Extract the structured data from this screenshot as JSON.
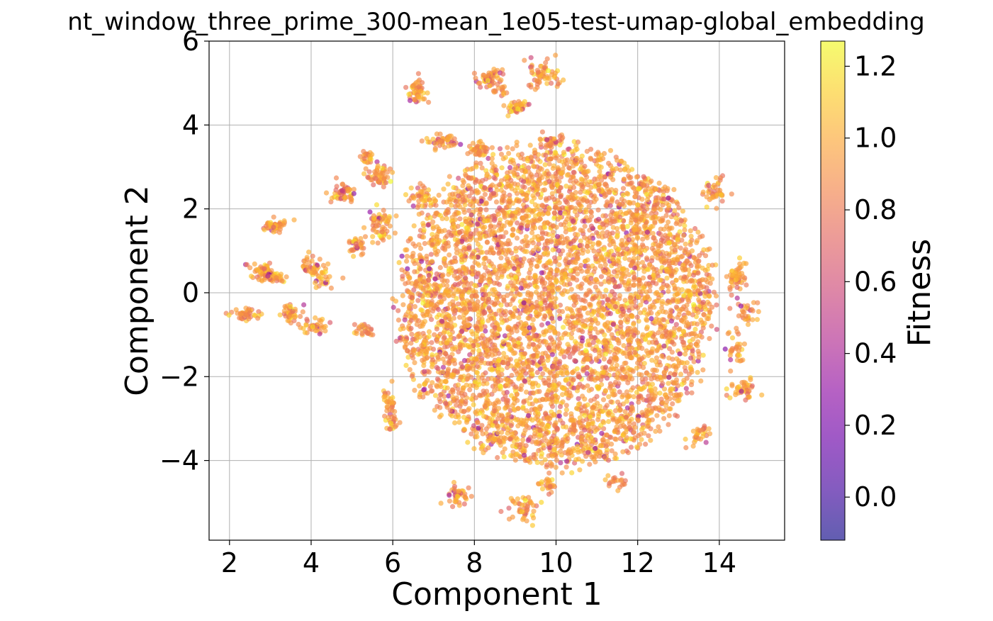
{
  "chart_data": {
    "type": "scatter",
    "title": "nt_window_three_prime_300-mean_1e05-test-umap-global_embedding",
    "xlabel": "Component 1",
    "ylabel": "Component 2",
    "xlim": [
      1.5,
      15.6
    ],
    "ylim": [
      -5.9,
      6.0
    ],
    "xticks": [
      2,
      4,
      6,
      8,
      10,
      12,
      14
    ],
    "yticks": [
      -4,
      -2,
      0,
      2,
      4,
      6
    ],
    "xtick_labels": [
      "2",
      "4",
      "6",
      "8",
      "10",
      "12",
      "14"
    ],
    "ytick_labels": [
      "−4",
      "−2",
      "0",
      "2",
      "4",
      "6"
    ],
    "grid": true,
    "colormap": "plasma",
    "point_alpha": 0.65,
    "colorbar": {
      "label": "Fitness",
      "range": [
        -0.12,
        1.27
      ],
      "ticks": [
        0.0,
        0.2,
        0.4,
        0.6,
        0.8,
        1.0,
        1.2
      ],
      "tick_labels": [
        "0.0",
        "0.2",
        "0.4",
        "0.6",
        "0.8",
        "1.0",
        "1.2"
      ]
    },
    "main_cloud": {
      "cx": 10.0,
      "cy": -0.3,
      "rx": 3.9,
      "ry": 3.9,
      "n": 5200,
      "fitness_mean": 0.93,
      "fitness_sd": 0.12
    },
    "clusters": [
      {
        "cx": 2.4,
        "cy": -0.5,
        "sx": 0.2,
        "sy": 0.07,
        "n": 40
      },
      {
        "cx": 2.8,
        "cy": 0.5,
        "sx": 0.15,
        "sy": 0.1,
        "n": 50
      },
      {
        "cx": 3.1,
        "cy": 0.35,
        "sx": 0.12,
        "sy": 0.08,
        "n": 30
      },
      {
        "cx": 3.1,
        "cy": 1.6,
        "sx": 0.15,
        "sy": 0.08,
        "n": 50
      },
      {
        "cx": 3.5,
        "cy": -0.5,
        "sx": 0.12,
        "sy": 0.15,
        "n": 40
      },
      {
        "cx": 4.0,
        "cy": 0.6,
        "sx": 0.2,
        "sy": 0.12,
        "n": 40
      },
      {
        "cx": 4.1,
        "cy": -0.8,
        "sx": 0.15,
        "sy": 0.1,
        "n": 35
      },
      {
        "cx": 4.3,
        "cy": 0.3,
        "sx": 0.15,
        "sy": 0.12,
        "n": 20
      },
      {
        "cx": 4.8,
        "cy": 2.4,
        "sx": 0.15,
        "sy": 0.12,
        "n": 50
      },
      {
        "cx": 5.1,
        "cy": 1.1,
        "sx": 0.1,
        "sy": 0.1,
        "n": 30
      },
      {
        "cx": 5.3,
        "cy": -0.9,
        "sx": 0.1,
        "sy": 0.1,
        "n": 25
      },
      {
        "cx": 5.4,
        "cy": 3.2,
        "sx": 0.1,
        "sy": 0.1,
        "n": 25
      },
      {
        "cx": 5.7,
        "cy": 2.8,
        "sx": 0.15,
        "sy": 0.12,
        "n": 50
      },
      {
        "cx": 5.7,
        "cy": 1.6,
        "sx": 0.15,
        "sy": 0.2,
        "n": 60
      },
      {
        "cx": 5.9,
        "cy": -2.6,
        "sx": 0.1,
        "sy": 0.15,
        "n": 30
      },
      {
        "cx": 6.0,
        "cy": -3.1,
        "sx": 0.1,
        "sy": 0.1,
        "n": 20
      },
      {
        "cx": 6.6,
        "cy": 4.8,
        "sx": 0.1,
        "sy": 0.2,
        "n": 50
      },
      {
        "cx": 6.7,
        "cy": 2.3,
        "sx": 0.15,
        "sy": 0.12,
        "n": 40
      },
      {
        "cx": 7.2,
        "cy": 3.6,
        "sx": 0.2,
        "sy": 0.08,
        "n": 45
      },
      {
        "cx": 7.6,
        "cy": -4.8,
        "sx": 0.15,
        "sy": 0.12,
        "n": 40
      },
      {
        "cx": 8.1,
        "cy": 3.4,
        "sx": 0.15,
        "sy": 0.1,
        "n": 40
      },
      {
        "cx": 8.4,
        "cy": 5.1,
        "sx": 0.15,
        "sy": 0.12,
        "n": 50
      },
      {
        "cx": 8.6,
        "cy": 4.85,
        "sx": 0.1,
        "sy": 0.08,
        "n": 15
      },
      {
        "cx": 9.0,
        "cy": 4.4,
        "sx": 0.12,
        "sy": 0.1,
        "n": 40
      },
      {
        "cx": 9.2,
        "cy": -5.1,
        "sx": 0.15,
        "sy": 0.15,
        "n": 45
      },
      {
        "cx": 9.7,
        "cy": 5.2,
        "sx": 0.2,
        "sy": 0.18,
        "n": 60
      },
      {
        "cx": 9.8,
        "cy": -4.6,
        "sx": 0.15,
        "sy": 0.1,
        "n": 25
      },
      {
        "cx": 9.9,
        "cy": 3.6,
        "sx": 0.15,
        "sy": 0.08,
        "n": 35
      },
      {
        "cx": 11.5,
        "cy": -4.5,
        "sx": 0.12,
        "sy": 0.1,
        "n": 20
      },
      {
        "cx": 13.9,
        "cy": 2.4,
        "sx": 0.15,
        "sy": 0.15,
        "n": 40
      },
      {
        "cx": 14.4,
        "cy": 0.4,
        "sx": 0.12,
        "sy": 0.25,
        "n": 50
      },
      {
        "cx": 14.7,
        "cy": -0.5,
        "sx": 0.12,
        "sy": 0.15,
        "n": 30
      },
      {
        "cx": 14.6,
        "cy": -2.3,
        "sx": 0.15,
        "sy": 0.12,
        "n": 40
      },
      {
        "cx": 14.4,
        "cy": -1.4,
        "sx": 0.12,
        "sy": 0.2,
        "n": 30
      },
      {
        "cx": 13.5,
        "cy": -3.4,
        "sx": 0.12,
        "sy": 0.15,
        "n": 30
      }
    ]
  }
}
